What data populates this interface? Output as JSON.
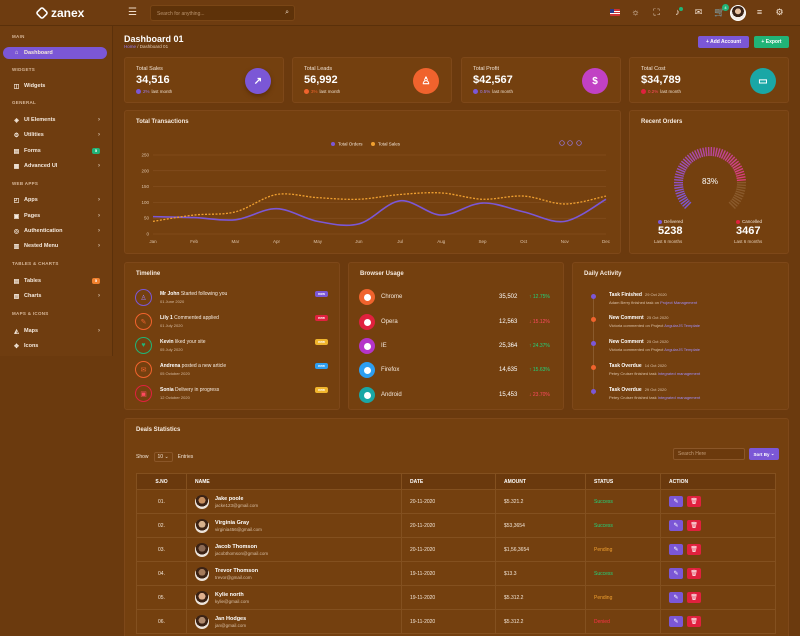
{
  "app": {
    "name": "zanex"
  },
  "topbar": {
    "search_placeholder": "Search for anything...",
    "cart_count": "4"
  },
  "sidebar": {
    "sections": [
      "MAIN",
      "WIDGETS",
      "GENERAL",
      "WEB APPS",
      "TABLES & CHARTS",
      "MAPS & ICONS"
    ],
    "items": [
      {
        "label": "Dashboard",
        "icon": "home-icon",
        "active": true
      },
      {
        "label": "Widgets",
        "icon": "layers-icon"
      },
      {
        "label": "UI Elements",
        "icon": "cube-icon",
        "chevron": true
      },
      {
        "label": "Utilities",
        "icon": "settings-icon",
        "chevron": true
      },
      {
        "label": "Forms",
        "icon": "file-icon",
        "count": "5",
        "count_color": "#21b477"
      },
      {
        "label": "Advanced UI",
        "icon": "layout-icon",
        "chevron": true
      },
      {
        "label": "Apps",
        "icon": "grid-icon",
        "chevron": true
      },
      {
        "label": "Pages",
        "icon": "pages-icon",
        "chevron": true
      },
      {
        "label": "Authentication",
        "icon": "lock-icon",
        "chevron": true
      },
      {
        "label": "Nested Menu",
        "icon": "menu-icon",
        "chevron": true
      },
      {
        "label": "Tables",
        "icon": "table-icon",
        "count": "5",
        "count_color": "#f0802d"
      },
      {
        "label": "Charts",
        "icon": "chart-icon",
        "chevron": true
      },
      {
        "label": "Maps",
        "icon": "map-icon",
        "chevron": true
      },
      {
        "label": "Icons",
        "icon": "icons-icon"
      }
    ]
  },
  "page": {
    "title": "Dashboard 01",
    "breadcrumb_home": "Home",
    "breadcrumb_current": "Dashboard 01",
    "add_account": "+ Add Account",
    "export": "+ Export"
  },
  "stats": [
    {
      "label": "Total Sales",
      "value": "34,516",
      "delta": "2%",
      "delta_suffix": " last month",
      "color": "#7b57d6",
      "icon": "trending-up-icon"
    },
    {
      "label": "Total Leads",
      "value": "56,992",
      "delta": "3%",
      "delta_suffix": " last month",
      "color": "#f0632d",
      "icon": "user-icon"
    },
    {
      "label": "Total Profit",
      "value": "$42,567",
      "delta": "0.5%",
      "delta_suffix": " last month",
      "color": "#c141c4",
      "icon": "dollar-icon"
    },
    {
      "label": "Total Cost",
      "value": "$34,789",
      "delta": "0.2%",
      "delta_suffix": " last month",
      "color": "#1aa7a6",
      "icon": "briefcase-icon"
    }
  ],
  "transactions": {
    "title": "Total Transactions",
    "legend": [
      "Total Orders",
      "Total Sales"
    ]
  },
  "chart_data": {
    "type": "line",
    "categories": [
      "Jan",
      "Feb",
      "Mar",
      "Apr",
      "May",
      "Jun",
      "Jul",
      "Aug",
      "Sep",
      "Oct",
      "Nov",
      "Dec"
    ],
    "y_ticks": [
      "0",
      "50",
      "100",
      "150",
      "200",
      "250"
    ],
    "ylim": [
      0,
      250
    ],
    "series": [
      {
        "name": "Total Orders",
        "color": "#7b57d6",
        "values": [
          55,
          52,
          45,
          80,
          40,
          32,
          105,
          60,
          98,
          70,
          40,
          110
        ]
      },
      {
        "name": "Total Sales",
        "color": "#f0a030",
        "values": [
          40,
          60,
          70,
          125,
          115,
          110,
          125,
          130,
          110,
          120,
          95,
          120
        ]
      }
    ]
  },
  "recent_orders": {
    "title": "Recent Orders",
    "percent_label": "83%",
    "percent": 83,
    "delivered_label": "Delivered",
    "delivered_value": "5238",
    "delivered_sub": "Last 6 months",
    "cancelled_label": "Cancelled",
    "cancelled_value": "3467",
    "cancelled_sub": "Last 6 months"
  },
  "timeline": {
    "title": "Timeline",
    "items": [
      {
        "who": "Mr John",
        "text": " Started following you",
        "date": "01 June 2020",
        "badge": "now",
        "badge_color": "#7b57d6",
        "icon": "user-icon",
        "color": "#7b57d6"
      },
      {
        "who": "Lily 1",
        "text": " Commented applied",
        "date": "01 July 2020",
        "badge": "new",
        "badge_color": "#e0213e",
        "icon": "comment-icon",
        "color": "#f0632d"
      },
      {
        "who": "Kevin",
        "text": " liked your site",
        "date": "05 July 2020",
        "badge": "new",
        "badge_color": "#f0b52d",
        "icon": "like-icon",
        "color": "#21b477"
      },
      {
        "who": "Andrena",
        "text": " posted a new article",
        "date": "05 October 2020",
        "badge": "new",
        "badge_color": "#2d9ef0",
        "icon": "mail-icon",
        "color": "#f0632d"
      },
      {
        "who": "Sonia",
        "text": " Delivery in progress",
        "date": "12 October 2020",
        "badge": "new",
        "badge_color": "#f0b52d",
        "icon": "cart-icon",
        "color": "#e0213e"
      }
    ]
  },
  "browser_usage": {
    "title": "Browser Usage",
    "items": [
      {
        "name": "Chrome",
        "value": "35,502",
        "pct": "12.75%",
        "up": true,
        "color": "#f0632d"
      },
      {
        "name": "Opera",
        "value": "12,563",
        "pct": "15.12%",
        "up": false,
        "color": "#e0213e"
      },
      {
        "name": "IE",
        "value": "25,364",
        "pct": "24.37%",
        "up": true,
        "color": "#b534c9"
      },
      {
        "name": "Firefox",
        "value": "14,635",
        "pct": "15.63%",
        "up": true,
        "color": "#2d9ef0"
      },
      {
        "name": "Android",
        "value": "15,453",
        "pct": "23.70%",
        "up": false,
        "color": "#1aa7a6"
      }
    ]
  },
  "daily_activity": {
    "title": "Daily Activity",
    "items": [
      {
        "title": "Task Finished",
        "date": "29 Oct 2020",
        "desc": "Adam Berry finished task on ",
        "hl": "Project Management",
        "color": "#7b57d6"
      },
      {
        "title": "New Comment",
        "date": "25 Oct 2020",
        "desc": "Victoria commented on Project ",
        "hl": "AngularJS Template",
        "color": "#f0632d"
      },
      {
        "title": "New Comment",
        "date": "25 Oct 2020",
        "desc": "Victoria commented on Project ",
        "hl": "AngularJS Template",
        "color": "#7b57d6"
      },
      {
        "title": "Task Overdue",
        "date": "14 Oct 2020",
        "desc": "Petey Cruiser finished task ",
        "hl": "Integrated management",
        "color": "#f0632d"
      },
      {
        "title": "Task Overdue",
        "date": "29 Oct 2020",
        "desc": "Petey Cruiser finished task ",
        "hl": "Integrated management",
        "color": "#7b57d6"
      }
    ]
  },
  "deals": {
    "title": "Deals Statistics",
    "show": "Show",
    "page_size": "10",
    "entries": "Entries",
    "filter_placeholder": "Search Here",
    "sort_by": "Sort By",
    "columns": [
      "S.NO",
      "NAME",
      "DATE",
      "AMOUNT",
      "STATUS",
      "ACTION"
    ],
    "rows": [
      {
        "sno": "01.",
        "name": "Jake poole",
        "email": "jacke123@gmail.com",
        "date": "20-11-2020",
        "amount": "$5.321.2",
        "status": "Success",
        "status_color": "#21d47a",
        "avatar": "#c98f5e"
      },
      {
        "sno": "02.",
        "name": "Virginia Gray",
        "email": "virginia456@gmail.com",
        "date": "20-11-2020",
        "amount": "$53,3654",
        "status": "Success",
        "status_color": "#21d47a",
        "avatar": "#d6b08c"
      },
      {
        "sno": "03.",
        "name": "Jacob Thomson",
        "email": "jacobthomson@gmail.com",
        "date": "20-11-2020",
        "amount": "$1,56,3654",
        "status": "Pending",
        "status_color": "#f0a030",
        "avatar": "#8c6a54"
      },
      {
        "sno": "04.",
        "name": "Trevor Thomson",
        "email": "trevor@gmail.com",
        "date": "19-11-2020",
        "amount": "$13.3",
        "status": "Success",
        "status_color": "#21d47a",
        "avatar": "#a47a5a"
      },
      {
        "sno": "05.",
        "name": "Kylie north",
        "email": "kylie@gmail.com",
        "date": "19-11-2020",
        "amount": "$5.312.2",
        "status": "Pending",
        "status_color": "#f0a030",
        "avatar": "#e0b08e"
      },
      {
        "sno": "06.",
        "name": "Jan Hodges",
        "email": "jan@gmail.com",
        "date": "19-11-2020",
        "amount": "$5.312.2",
        "status": "Denied",
        "status_color": "#ff3048",
        "avatar": "#b08a6e"
      }
    ]
  },
  "colors": {
    "accent": "#7b57d6",
    "export": "#21b477",
    "delete": "#e0213e"
  }
}
